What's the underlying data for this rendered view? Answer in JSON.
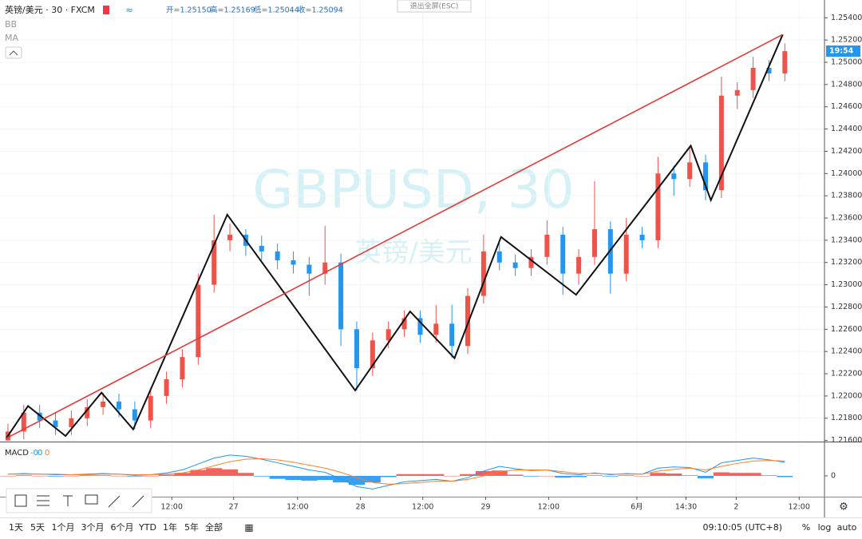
{
  "chart_data": {
    "type": "candlestick",
    "header": {
      "symbol": "英镑/美元 · 30 · FXCM",
      "ohlc": [
        "开=1.25150",
        "高=1.25169",
        "低=1.25044",
        "收=1.25094"
      ],
      "indicators": [
        "BB",
        "MA"
      ]
    },
    "watermark": [
      "GBPUSD, 30",
      "英镑/美元"
    ],
    "exit_fullscreen": "退出全屏(ESC)",
    "countdown": "19:54",
    "up_color": "#f0524a",
    "down_color": "#2196f3",
    "grid": true,
    "xlim": [
      0,
      156
    ],
    "ylim": [
      1.2159,
      1.2556
    ],
    "xticks": [
      {
        "value": 32.5,
        "label": "12:00"
      },
      {
        "value": 44.2,
        "label": "27"
      },
      {
        "value": 56.3,
        "label": "12:00"
      },
      {
        "value": 68.2,
        "label": "28"
      },
      {
        "value": 80.0,
        "label": "12:00"
      },
      {
        "value": 91.9,
        "label": "29"
      },
      {
        "value": 103.8,
        "label": "12:00"
      },
      {
        "value": 120.5,
        "label": "6月"
      },
      {
        "value": 129.8,
        "label": "14:30"
      },
      {
        "value": 139.3,
        "label": "2"
      },
      {
        "value": 151.2,
        "label": "12:00"
      }
    ],
    "yticks": [
      {
        "value": 1.216,
        "label": "1.21600"
      },
      {
        "value": 1.218,
        "label": "1.21800"
      },
      {
        "value": 1.22,
        "label": "1.22000"
      },
      {
        "value": 1.222,
        "label": "1.22200"
      },
      {
        "value": 1.224,
        "label": "1.22400"
      },
      {
        "value": 1.226,
        "label": "1.22600"
      },
      {
        "value": 1.228,
        "label": "1.22800"
      },
      {
        "value": 1.23,
        "label": "1.23000"
      },
      {
        "value": 1.232,
        "label": "1.23200"
      },
      {
        "value": 1.234,
        "label": "1.23400"
      },
      {
        "value": 1.236,
        "label": "1.23600"
      },
      {
        "value": 1.238,
        "label": "1.23800"
      },
      {
        "value": 1.24,
        "label": "1.24000"
      },
      {
        "value": 1.242,
        "label": "1.24200"
      },
      {
        "value": 1.244,
        "label": "1.24400"
      },
      {
        "value": 1.246,
        "label": "1.24600"
      },
      {
        "value": 1.248,
        "label": "1.24800"
      },
      {
        "value": 1.25,
        "label": "1.25000"
      },
      {
        "value": 1.252,
        "label": "1.25200"
      },
      {
        "value": 1.254,
        "label": "1.25400"
      }
    ],
    "x": [
      1.5,
      4.5,
      7.5,
      10.5,
      13.5,
      16.5,
      19.5,
      22.5,
      25.5,
      28.5,
      31.5,
      34.5,
      37.5,
      40.5,
      43.5,
      46.5,
      49.5,
      52.5,
      55.5,
      58.5,
      61.5,
      64.5,
      67.5,
      70.5,
      73.5,
      76.5,
      79.5,
      82.5,
      85.5,
      88.5,
      91.5,
      94.5,
      97.5,
      100.5,
      103.5,
      106.5,
      109.5,
      112.5,
      115.5,
      118.5,
      121.5,
      124.5,
      127.5,
      130.5,
      133.5,
      136.5,
      139.5,
      142.5,
      145.5,
      148.5
    ],
    "open": [
      1.216,
      1.2168,
      1.2185,
      1.2178,
      1.2172,
      1.218,
      1.219,
      1.2195,
      1.2188,
      1.2178,
      1.22,
      1.2215,
      1.2235,
      1.23,
      1.234,
      1.2345,
      1.2335,
      1.233,
      1.2322,
      1.2318,
      1.231,
      1.232,
      1.226,
      1.2225,
      1.225,
      1.226,
      1.227,
      1.2255,
      1.2265,
      1.2245,
      1.229,
      1.233,
      1.232,
      1.2315,
      1.2325,
      1.2345,
      1.231,
      1.2325,
      1.235,
      1.231,
      1.2345,
      1.234,
      1.24,
      1.2395,
      1.241,
      1.2385,
      1.247,
      1.2475,
      1.2495,
      1.249
    ],
    "high": [
      1.2175,
      1.2192,
      1.2192,
      1.2185,
      1.2187,
      1.2197,
      1.2203,
      1.2202,
      1.2195,
      1.2207,
      1.2222,
      1.2242,
      1.231,
      1.2363,
      1.2355,
      1.235,
      1.2344,
      1.2337,
      1.233,
      1.2325,
      1.2353,
      1.2328,
      1.2267,
      1.2257,
      1.2267,
      1.2277,
      1.2277,
      1.2282,
      1.2282,
      1.2297,
      1.2345,
      1.2337,
      1.2327,
      1.2332,
      1.2358,
      1.2352,
      1.2332,
      1.2393,
      1.2357,
      1.236,
      1.2352,
      1.2415,
      1.2407,
      1.2425,
      1.2417,
      1.2487,
      1.2482,
      1.2505,
      1.2502,
      1.2517
    ],
    "low": [
      1.216,
      1.2161,
      1.2171,
      1.2165,
      1.2165,
      1.2173,
      1.2183,
      1.2181,
      1.217,
      1.2171,
      1.2193,
      1.2208,
      1.2228,
      1.2293,
      1.233,
      1.2326,
      1.2322,
      1.2314,
      1.231,
      1.229,
      1.23,
      1.2245,
      1.2205,
      1.2218,
      1.2243,
      1.2253,
      1.2248,
      1.2248,
      1.2234,
      1.2238,
      1.2283,
      1.2313,
      1.2308,
      1.2308,
      1.2318,
      1.2291,
      1.23,
      1.2318,
      1.2292,
      1.2303,
      1.2333,
      1.2333,
      1.238,
      1.2388,
      1.2376,
      1.2378,
      1.2458,
      1.2468,
      1.2483,
      1.2483
    ],
    "close": [
      1.2168,
      1.2185,
      1.2178,
      1.2172,
      1.218,
      1.219,
      1.2195,
      1.2188,
      1.2178,
      1.22,
      1.2215,
      1.2235,
      1.23,
      1.234,
      1.2345,
      1.2335,
      1.233,
      1.2322,
      1.2318,
      1.231,
      1.232,
      1.226,
      1.2225,
      1.225,
      1.226,
      1.227,
      1.2255,
      1.2265,
      1.2245,
      1.229,
      1.233,
      1.232,
      1.2315,
      1.2325,
      1.2345,
      1.231,
      1.2325,
      1.235,
      1.231,
      1.2345,
      1.234,
      1.24,
      1.2395,
      1.241,
      1.2385,
      1.247,
      1.2475,
      1.2495,
      1.249,
      1.251
    ],
    "zigzag": {
      "color": "#111111",
      "x": [
        1.2,
        5.3,
        12.4,
        19.2,
        25.2,
        43.0,
        67.2,
        77.6,
        86.0,
        94.8,
        109.0,
        130.7,
        134.5,
        148.1
      ],
      "y": [
        1.2162,
        1.2191,
        1.2164,
        1.2203,
        1.217,
        1.2363,
        1.2205,
        1.2276,
        1.2234,
        1.2343,
        1.2291,
        1.2425,
        1.2376,
        1.2525
      ]
    },
    "trendline": {
      "color": "#e53935",
      "x": [
        1.2,
        148.1
      ],
      "y": [
        1.2162,
        1.2525
      ]
    },
    "macd": {
      "name": "MACD",
      "legend_values": [
        "-0",
        "0",
        "0"
      ],
      "y2lim": [
        -3.5,
        5.5
      ],
      "y2ticks": [
        0
      ],
      "macd_color": "#2196f3",
      "signal_color": "#ff7f27",
      "macd_line": [
        0.3,
        0.4,
        0.3,
        0.2,
        0.2,
        0.3,
        0.4,
        0.3,
        0.1,
        0.2,
        0.5,
        1.0,
        2.0,
        3.0,
        3.5,
        3.3,
        2.8,
        2.2,
        1.6,
        1.0,
        0.6,
        -0.5,
        -1.8,
        -2.2,
        -1.6,
        -1.0,
        -0.8,
        -0.6,
        -0.9,
        -0.3,
        0.8,
        1.6,
        1.2,
        0.9,
        1.0,
        0.4,
        0.2,
        0.5,
        0.2,
        0.4,
        0.3,
        1.3,
        1.5,
        1.4,
        0.6,
        2.2,
        2.6,
        3.0,
        2.7,
        2.3
      ],
      "signal_line": [
        0.3,
        0.3,
        0.3,
        0.3,
        0.2,
        0.2,
        0.3,
        0.3,
        0.2,
        0.2,
        0.3,
        0.5,
        1.0,
        1.7,
        2.4,
        2.8,
        2.9,
        2.7,
        2.3,
        1.8,
        1.3,
        0.6,
        -0.3,
        -1.1,
        -1.4,
        -1.3,
        -1.1,
        -0.9,
        -0.9,
        -0.6,
        0.0,
        0.7,
        1.0,
        1.0,
        1.0,
        0.7,
        0.4,
        0.4,
        0.3,
        0.3,
        0.3,
        0.8,
        1.1,
        1.3,
        1.0,
        1.6,
        2.1,
        2.5,
        2.6,
        2.5
      ],
      "histogram": [
        0,
        0.1,
        0,
        -0.1,
        0,
        0.1,
        0.1,
        0,
        -0.1,
        0,
        0.2,
        0.5,
        1.0,
        1.3,
        1.1,
        0.5,
        -0.1,
        -0.5,
        -0.7,
        -0.8,
        -0.7,
        -1.1,
        -1.5,
        -1.1,
        -0.2,
        0.3,
        0.3,
        0.3,
        0,
        0.3,
        0.8,
        0.9,
        0.2,
        -0.1,
        0,
        -0.3,
        -0.2,
        0.1,
        -0.1,
        0.1,
        0,
        0.5,
        0.4,
        0.1,
        -0.4,
        0.6,
        0.5,
        0.5,
        0.1,
        -0.2
      ]
    },
    "toolbar": {
      "ranges": [
        "1天",
        "5天",
        "1个月",
        "3个月",
        "6个月",
        "YTD",
        "1年",
        "5年",
        "全部"
      ],
      "clock": "09:10:05 (UTC+8)",
      "options": [
        "%",
        "log",
        "auto"
      ]
    }
  }
}
